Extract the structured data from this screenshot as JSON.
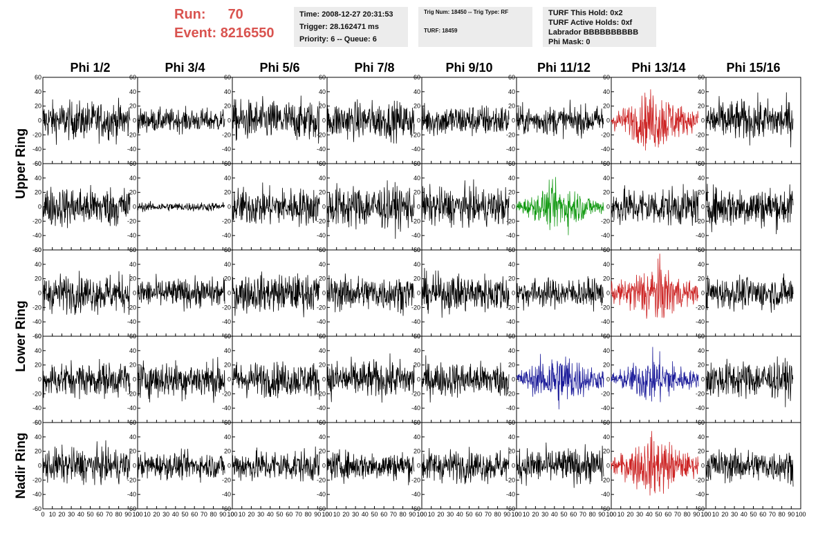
{
  "header": {
    "run_label": "Run:",
    "run_value": "70",
    "event_label": "Event:",
    "event_value": "8216550",
    "run_color": "#d9534f"
  },
  "info_box_time": {
    "time": "Time: 2008-12-27 20:31:53",
    "trigger": "Trigger: 28.162471 ms",
    "priority": "Priority: 6 -- Queue: 6"
  },
  "info_box_trig": {
    "trig": "Trig Num: 18450 -- Trig Type: RF",
    "turf": "TURF: 18459"
  },
  "info_box_turf": {
    "this_hold": "TURF This Hold: 0x2",
    "active_holds": "TURF Active Holds: 0xf",
    "labrador": "Labrador BBBBBBBBBB",
    "phi_mask": "Phi Mask: 0"
  },
  "chart_data": {
    "type": "line",
    "columns": [
      "Phi 1/2",
      "Phi 3/4",
      "Phi 5/6",
      "Phi 7/8",
      "Phi 9/10",
      "Phi 11/12",
      "Phi 13/14",
      "Phi 15/16"
    ],
    "ring_labels": [
      {
        "label": "Upper Ring",
        "rows": [
          0,
          1
        ]
      },
      {
        "label": "Lower Ring",
        "rows": [
          2,
          3
        ]
      },
      {
        "label": "Nadir Ring",
        "rows": [
          4,
          4
        ]
      }
    ],
    "xlim": [
      0,
      100
    ],
    "ylim": [
      -60,
      60
    ],
    "xticks": [
      0,
      10,
      20,
      30,
      40,
      50,
      60,
      70,
      80,
      90,
      100
    ],
    "yticks": [
      -60,
      -40,
      -20,
      0,
      20,
      40,
      60
    ],
    "samples_per_trace": 260,
    "colors": {
      "default": "#000000",
      "red": "#cc2222",
      "green": "#119911",
      "blue": "#1a1a99"
    },
    "panels": [
      [
        {
          "amp": 13,
          "color": "default"
        },
        {
          "amp": 8,
          "color": "default"
        },
        {
          "amp": 14,
          "color": "default"
        },
        {
          "amp": 13,
          "color": "default"
        },
        {
          "amp": 11,
          "color": "default"
        },
        {
          "amp": 10,
          "color": "default"
        },
        {
          "amp": 17,
          "color": "red",
          "burst": true
        },
        {
          "amp": 14,
          "color": "default"
        }
      ],
      [
        {
          "amp": 14,
          "color": "default"
        },
        {
          "amp": 3,
          "color": "default"
        },
        {
          "amp": 13,
          "color": "default"
        },
        {
          "amp": 15,
          "color": "default"
        },
        {
          "amp": 13,
          "color": "default"
        },
        {
          "amp": 13,
          "color": "green",
          "burst": true
        },
        {
          "amp": 13,
          "color": "default"
        },
        {
          "amp": 14,
          "color": "default"
        }
      ],
      [
        {
          "amp": 13,
          "color": "default"
        },
        {
          "amp": 10,
          "color": "default"
        },
        {
          "amp": 13,
          "color": "default"
        },
        {
          "amp": 12,
          "color": "default"
        },
        {
          "amp": 13,
          "color": "default"
        },
        {
          "amp": 10,
          "color": "default"
        },
        {
          "amp": 17,
          "color": "red",
          "burst": true
        },
        {
          "amp": 11,
          "color": "default"
        }
      ],
      [
        {
          "amp": 12,
          "color": "default"
        },
        {
          "amp": 13,
          "color": "default"
        },
        {
          "amp": 12,
          "color": "default"
        },
        {
          "amp": 13,
          "color": "default"
        },
        {
          "amp": 12,
          "color": "default"
        },
        {
          "amp": 16,
          "color": "blue",
          "burst": true
        },
        {
          "amp": 14,
          "color": "blue",
          "burst": true
        },
        {
          "amp": 13,
          "color": "default"
        }
      ],
      [
        {
          "amp": 12,
          "color": "default"
        },
        {
          "amp": 9,
          "color": "default"
        },
        {
          "amp": 11,
          "color": "default"
        },
        {
          "amp": 10,
          "color": "default"
        },
        {
          "amp": 11,
          "color": "default"
        },
        {
          "amp": 12,
          "color": "default"
        },
        {
          "amp": 17,
          "color": "red",
          "burst": true
        },
        {
          "amp": 11,
          "color": "default"
        }
      ]
    ]
  }
}
